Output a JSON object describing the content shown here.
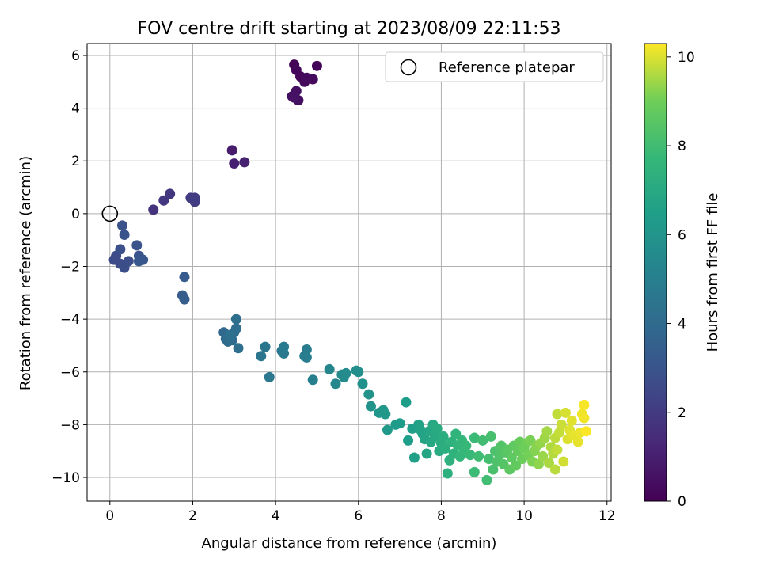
{
  "chart_data": {
    "type": "scatter",
    "title": "FOV centre drift starting at 2023/08/09 22:11:53",
    "xlabel": "Angular distance from reference (arcmin)",
    "ylabel": "Rotation from reference (arcmin)",
    "xlim": [
      -0.55,
      12.1
    ],
    "ylim": [
      -10.9,
      6.45
    ],
    "xticks": [
      "0",
      "2",
      "4",
      "6",
      "8",
      "10",
      "12"
    ],
    "yticks": [
      "−10",
      "−8",
      "−6",
      "−4",
      "−2",
      "0",
      "2",
      "4",
      "6"
    ],
    "grid": true,
    "legend": {
      "position": "top-right",
      "entries": [
        "Reference platepar"
      ]
    },
    "reference_point": {
      "x": 0,
      "y": 0
    },
    "colorbar": {
      "label": "Hours from first FF file",
      "range": [
        0,
        10.3
      ],
      "ticks": [
        "0",
        "2",
        "4",
        "6",
        "8",
        "10"
      ],
      "colormap": "viridis"
    },
    "points": [
      [
        4.45,
        5.65,
        0.05
      ],
      [
        5.0,
        5.6,
        0.1
      ],
      [
        4.5,
        5.45,
        0.15
      ],
      [
        4.6,
        5.2,
        0.2
      ],
      [
        4.7,
        5.0,
        0.25
      ],
      [
        4.9,
        5.1,
        0.3
      ],
      [
        4.75,
        5.15,
        0.35
      ],
      [
        4.4,
        4.45,
        0.4
      ],
      [
        4.55,
        4.3,
        0.45
      ],
      [
        4.5,
        4.65,
        0.5
      ],
      [
        4.45,
        4.4,
        0.55
      ],
      [
        2.95,
        2.4,
        0.9
      ],
      [
        3.0,
        1.9,
        1.0
      ],
      [
        3.25,
        1.95,
        1.1
      ],
      [
        1.05,
        0.15,
        1.7
      ],
      [
        1.3,
        0.5,
        1.8
      ],
      [
        1.45,
        0.75,
        1.9
      ],
      [
        1.95,
        0.6,
        2.0
      ],
      [
        2.05,
        0.6,
        2.05
      ],
      [
        2.05,
        0.45,
        2.1
      ],
      [
        0.1,
        -1.75,
        2.6
      ],
      [
        0.15,
        -1.6,
        2.65
      ],
      [
        0.25,
        -1.9,
        2.7
      ],
      [
        0.35,
        -2.05,
        2.75
      ],
      [
        0.45,
        -1.8,
        2.8
      ],
      [
        0.25,
        -1.35,
        2.85
      ],
      [
        0.3,
        -0.45,
        2.9
      ],
      [
        0.35,
        -0.8,
        2.95
      ],
      [
        0.65,
        -1.2,
        3.0
      ],
      [
        0.7,
        -1.6,
        3.05
      ],
      [
        0.8,
        -1.75,
        3.1
      ],
      [
        0.7,
        -1.8,
        3.15
      ],
      [
        1.8,
        -2.4,
        3.3
      ],
      [
        1.75,
        -3.1,
        3.4
      ],
      [
        1.8,
        -3.25,
        3.45
      ],
      [
        2.75,
        -4.5,
        3.9
      ],
      [
        2.8,
        -4.75,
        3.95
      ],
      [
        2.85,
        -4.85,
        4.0
      ],
      [
        2.95,
        -4.8,
        4.05
      ],
      [
        3.0,
        -4.5,
        4.1
      ],
      [
        3.05,
        -4.35,
        4.15
      ],
      [
        3.05,
        -4.0,
        4.2
      ],
      [
        3.1,
        -5.1,
        4.25
      ],
      [
        2.9,
        -4.6,
        4.3
      ],
      [
        3.65,
        -5.4,
        4.5
      ],
      [
        3.75,
        -5.05,
        4.55
      ],
      [
        3.85,
        -6.2,
        4.6
      ],
      [
        4.15,
        -5.2,
        4.65
      ],
      [
        4.2,
        -5.3,
        4.7
      ],
      [
        4.2,
        -5.05,
        4.75
      ],
      [
        4.7,
        -5.4,
        4.8
      ],
      [
        4.75,
        -5.15,
        4.85
      ],
      [
        4.75,
        -5.45,
        4.9
      ],
      [
        4.9,
        -6.3,
        5.0
      ],
      [
        5.3,
        -5.9,
        5.3
      ],
      [
        5.45,
        -6.45,
        5.4
      ],
      [
        5.6,
        -6.1,
        5.5
      ],
      [
        5.65,
        -6.2,
        5.55
      ],
      [
        5.7,
        -6.05,
        5.6
      ],
      [
        5.95,
        -5.95,
        5.7
      ],
      [
        6.0,
        -6.0,
        5.75
      ],
      [
        6.1,
        -6.45,
        5.8
      ],
      [
        6.25,
        -6.85,
        5.9
      ],
      [
        6.3,
        -7.3,
        5.95
      ],
      [
        6.5,
        -7.55,
        6.05
      ],
      [
        6.6,
        -7.45,
        6.1
      ],
      [
        6.65,
        -7.6,
        6.15
      ],
      [
        6.7,
        -8.2,
        6.2
      ],
      [
        6.9,
        -8.0,
        6.3
      ],
      [
        7.0,
        -7.95,
        6.35
      ],
      [
        7.15,
        -7.15,
        6.4
      ],
      [
        7.2,
        -8.6,
        6.45
      ],
      [
        7.3,
        -8.15,
        6.5
      ],
      [
        7.35,
        -9.25,
        6.55
      ],
      [
        7.45,
        -8.0,
        6.6
      ],
      [
        7.5,
        -8.2,
        6.65
      ],
      [
        7.55,
        -8.35,
        6.7
      ],
      [
        7.6,
        -8.55,
        6.75
      ],
      [
        7.65,
        -9.1,
        6.8
      ],
      [
        7.7,
        -8.25,
        6.85
      ],
      [
        7.75,
        -8.65,
        6.9
      ],
      [
        7.8,
        -8.0,
        6.95
      ],
      [
        7.85,
        -8.45,
        7.0
      ],
      [
        7.9,
        -8.15,
        7.05
      ],
      [
        7.95,
        -9.0,
        7.1
      ],
      [
        8.0,
        -8.7,
        7.15
      ],
      [
        8.05,
        -8.45,
        7.2
      ],
      [
        8.1,
        -8.9,
        7.25
      ],
      [
        8.15,
        -9.85,
        7.3
      ],
      [
        8.2,
        -9.35,
        7.35
      ],
      [
        8.25,
        -8.65,
        7.4
      ],
      [
        8.3,
        -9.1,
        7.45
      ],
      [
        8.35,
        -8.35,
        7.5
      ],
      [
        8.4,
        -8.8,
        7.55
      ],
      [
        8.45,
        -9.2,
        7.6
      ],
      [
        8.5,
        -8.6,
        7.65
      ],
      [
        8.55,
        -9.0,
        7.7
      ],
      [
        8.6,
        -8.8,
        7.75
      ],
      [
        8.7,
        -9.15,
        7.8
      ],
      [
        8.8,
        -8.5,
        7.85
      ],
      [
        8.8,
        -9.8,
        7.9
      ],
      [
        8.9,
        -9.2,
        7.95
      ],
      [
        9.0,
        -8.6,
        8.0
      ],
      [
        9.1,
        -10.1,
        8.05
      ],
      [
        9.15,
        -9.3,
        8.1
      ],
      [
        9.2,
        -8.45,
        8.15
      ],
      [
        9.25,
        -9.7,
        8.2
      ],
      [
        9.3,
        -9.0,
        8.25
      ],
      [
        9.35,
        -9.4,
        8.3
      ],
      [
        9.4,
        -9.15,
        8.35
      ],
      [
        9.45,
        -8.8,
        8.4
      ],
      [
        9.5,
        -9.5,
        8.45
      ],
      [
        9.55,
        -9.05,
        8.5
      ],
      [
        9.6,
        -8.95,
        8.55
      ],
      [
        9.65,
        -9.7,
        8.6
      ],
      [
        9.7,
        -9.25,
        8.65
      ],
      [
        9.75,
        -8.8,
        8.7
      ],
      [
        9.8,
        -9.55,
        8.75
      ],
      [
        9.85,
        -9.0,
        8.8
      ],
      [
        9.9,
        -8.65,
        8.85
      ],
      [
        9.95,
        -9.3,
        8.9
      ],
      [
        10.0,
        -8.9,
        8.95
      ],
      [
        10.05,
        -8.7,
        9.0
      ],
      [
        10.1,
        -9.15,
        9.05
      ],
      [
        10.15,
        -8.6,
        9.1
      ],
      [
        10.2,
        -9.4,
        9.15
      ],
      [
        10.25,
        -9.0,
        9.2
      ],
      [
        10.3,
        -8.8,
        9.25
      ],
      [
        10.35,
        -9.5,
        9.3
      ],
      [
        10.4,
        -8.7,
        9.35
      ],
      [
        10.45,
        -9.2,
        9.4
      ],
      [
        10.5,
        -8.5,
        9.45
      ],
      [
        10.55,
        -8.25,
        9.5
      ],
      [
        10.6,
        -9.45,
        9.55
      ],
      [
        10.65,
        -8.85,
        9.6
      ],
      [
        10.7,
        -9.1,
        9.65
      ],
      [
        10.75,
        -9.7,
        9.7
      ],
      [
        10.75,
        -8.5,
        9.72
      ],
      [
        10.8,
        -7.6,
        9.75
      ],
      [
        10.8,
        -8.95,
        9.78
      ],
      [
        10.85,
        -8.3,
        9.8
      ],
      [
        10.9,
        -8.0,
        9.85
      ],
      [
        10.95,
        -9.4,
        9.9
      ],
      [
        11.0,
        -7.55,
        9.95
      ],
      [
        11.05,
        -8.55,
        10.0
      ],
      [
        11.1,
        -8.2,
        10.02
      ],
      [
        11.15,
        -7.85,
        10.05
      ],
      [
        11.2,
        -8.4,
        10.08
      ],
      [
        11.3,
        -8.65,
        10.1
      ],
      [
        11.35,
        -8.3,
        10.13
      ],
      [
        11.4,
        -7.6,
        10.16
      ],
      [
        11.45,
        -7.75,
        10.2
      ],
      [
        11.45,
        -7.25,
        10.25
      ],
      [
        11.5,
        -8.25,
        10.3
      ]
    ]
  }
}
